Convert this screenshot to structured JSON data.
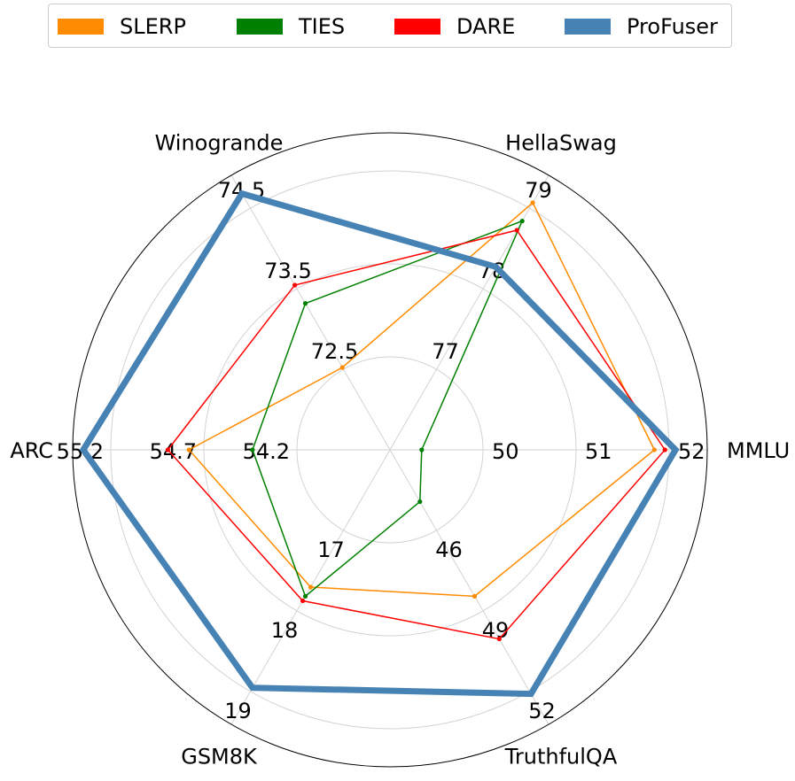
{
  "chart_data": {
    "type": "radar",
    "axes": [
      {
        "name": "MMLU",
        "ticks": [
          "50",
          "51",
          "52"
        ]
      },
      {
        "name": "HellaSwag",
        "ticks": [
          "77",
          "78",
          "79"
        ]
      },
      {
        "name": "Winogrande",
        "ticks": [
          "72.5",
          "73.5",
          "74.5"
        ]
      },
      {
        "name": "ARC",
        "ticks": [
          "54.2",
          "54.7",
          "55.2"
        ]
      },
      {
        "name": "GSM8K",
        "ticks": [
          "17",
          "18",
          "19"
        ]
      },
      {
        "name": "TruthfulQA",
        "ticks": [
          "46",
          "49",
          "52"
        ]
      }
    ],
    "axis_ranges": [
      [
        49.3,
        52.3
      ],
      [
        76.3,
        79.3
      ],
      [
        71.8,
        74.8
      ],
      [
        53.85,
        55.35
      ],
      [
        16.3,
        19.3
      ],
      [
        43.9,
        52.9
      ]
    ],
    "series": [
      {
        "name": "SLERP",
        "color": "#ff8c00",
        "values": [
          51.8,
          79.0,
          72.7,
          54.8,
          17.8,
          48.7
        ]
      },
      {
        "name": "TIES",
        "color": "#008000",
        "values": [
          49.6,
          78.8,
          73.4,
          54.5,
          17.9,
          45.6
        ]
      },
      {
        "name": "DARE",
        "color": "#ff0000",
        "values": [
          51.9,
          78.7,
          73.6,
          54.9,
          17.95,
          50.1
        ]
      },
      {
        "name": "ProFuser",
        "color": "#4682b4",
        "values": [
          52.0,
          78.3,
          74.6,
          55.3,
          18.9,
          51.9
        ]
      }
    ],
    "grid": true,
    "legend_position": "top"
  }
}
